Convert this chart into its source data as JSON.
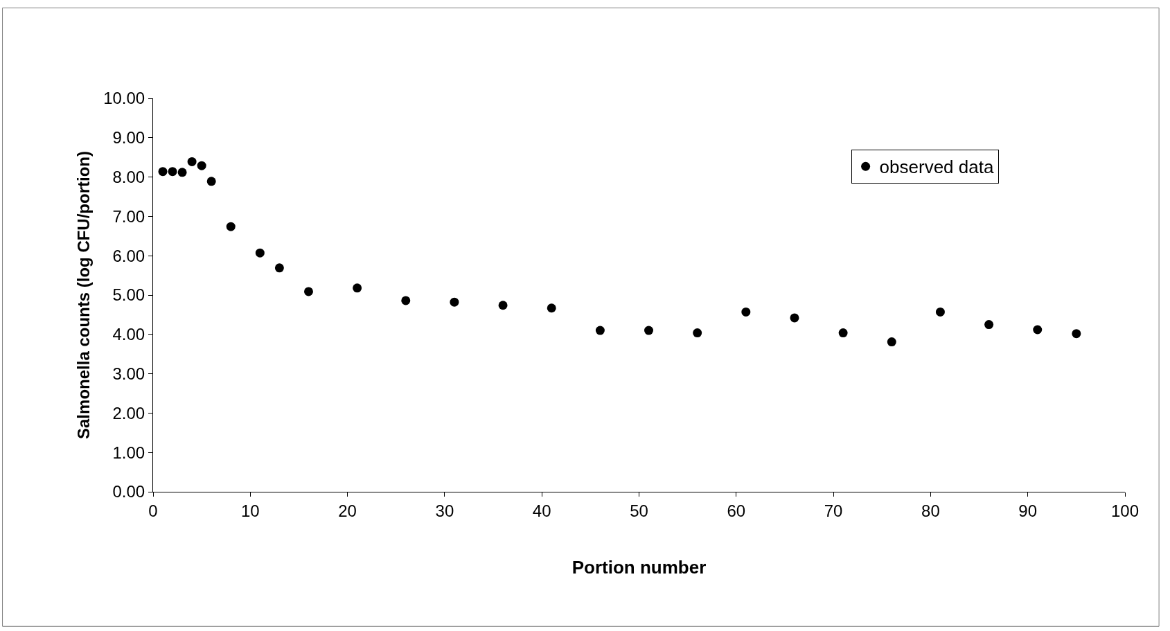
{
  "chart_data": {
    "type": "scatter",
    "xlabel": "Portion number",
    "ylabel": "Salmonella counts (log CFU/portion)",
    "x": [
      1,
      2,
      3,
      4,
      5,
      6,
      8,
      11,
      13,
      16,
      21,
      26,
      31,
      36,
      41,
      46,
      51,
      56,
      61,
      66,
      71,
      76,
      81,
      86,
      91,
      95
    ],
    "series": [
      {
        "name": "observed data",
        "color": "#000000",
        "values": [
          8.14,
          8.14,
          8.12,
          8.39,
          8.29,
          7.89,
          6.74,
          6.07,
          5.69,
          5.09,
          5.18,
          4.86,
          4.82,
          4.74,
          4.67,
          4.1,
          4.1,
          4.04,
          4.57,
          4.42,
          4.04,
          3.81,
          4.57,
          4.25,
          4.12,
          4.02
        ]
      }
    ],
    "xlim": [
      0,
      100
    ],
    "xticks": [
      0,
      10,
      20,
      30,
      40,
      50,
      60,
      70,
      80,
      90,
      100
    ],
    "ylim": [
      0,
      10
    ],
    "yticks": [
      {
        "value": 0,
        "label": "0.00"
      },
      {
        "value": 1,
        "label": "1.00"
      },
      {
        "value": 2,
        "label": "2.00"
      },
      {
        "value": 3,
        "label": "3.00"
      },
      {
        "value": 4,
        "label": "4.00"
      },
      {
        "value": 5,
        "label": "5.00"
      },
      {
        "value": 6,
        "label": "6.00"
      },
      {
        "value": 7,
        "label": "7.00"
      },
      {
        "value": 8,
        "label": "8.00"
      },
      {
        "value": 9,
        "label": "9.00"
      },
      {
        "value": 10,
        "label": "10.00"
      }
    ],
    "legend": "top right",
    "marker": "circle"
  }
}
